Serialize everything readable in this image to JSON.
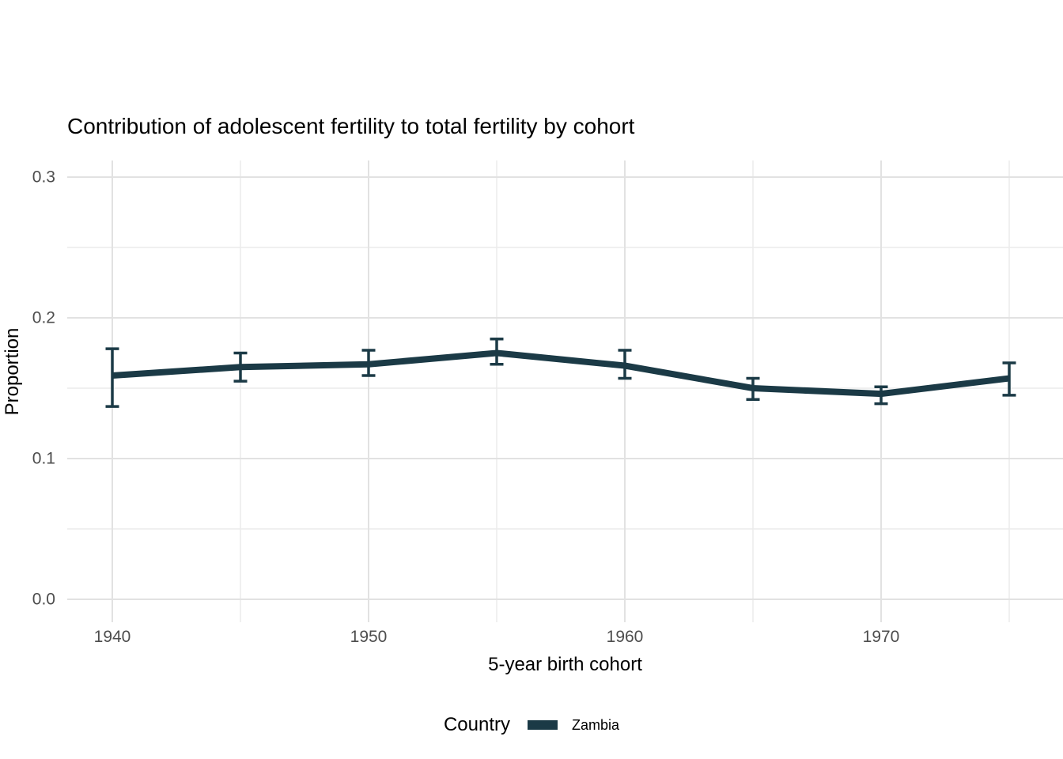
{
  "chart_data": {
    "type": "line",
    "title": "Contribution of adolescent fertility to total fertility by cohort",
    "xlabel": "5-year birth cohort",
    "ylabel": "Proportion",
    "legend_title": "Country",
    "legend_position": "bottom",
    "grid": true,
    "error_bars": true,
    "xlim": [
      1938.2,
      1977.1
    ],
    "ylim": [
      0.0,
      0.3
    ],
    "x_major_ticks": [
      1940,
      1950,
      1960,
      1970
    ],
    "x_major_tick_labels": [
      "1940",
      "1950",
      "1960",
      "1970"
    ],
    "x_minor_ticks": [
      1945,
      1955,
      1965,
      1975
    ],
    "y_major_ticks": [
      0.0,
      0.1,
      0.2,
      0.3
    ],
    "y_major_tick_labels": [
      "0.0",
      "0.1",
      "0.2",
      "0.3"
    ],
    "y_minor_ticks": [
      0.05,
      0.15,
      0.25
    ],
    "series": [
      {
        "name": "Zambia",
        "color": "#1b3a46",
        "x": [
          1940,
          1945,
          1950,
          1955,
          1960,
          1965,
          1970,
          1975
        ],
        "y": [
          0.159,
          0.165,
          0.167,
          0.175,
          0.166,
          0.15,
          0.146,
          0.157
        ],
        "ci_lower": [
          0.137,
          0.155,
          0.159,
          0.167,
          0.157,
          0.142,
          0.139,
          0.145
        ],
        "ci_upper": [
          0.178,
          0.175,
          0.177,
          0.185,
          0.177,
          0.157,
          0.151,
          0.168
        ]
      }
    ],
    "colors": {
      "background": "#ffffff",
      "grid_major": "#e2e2e2",
      "grid_minor": "#ececec",
      "tick_label": "#4d4d4d",
      "text": "#000000",
      "series_zambia": "#1b3a46"
    }
  }
}
